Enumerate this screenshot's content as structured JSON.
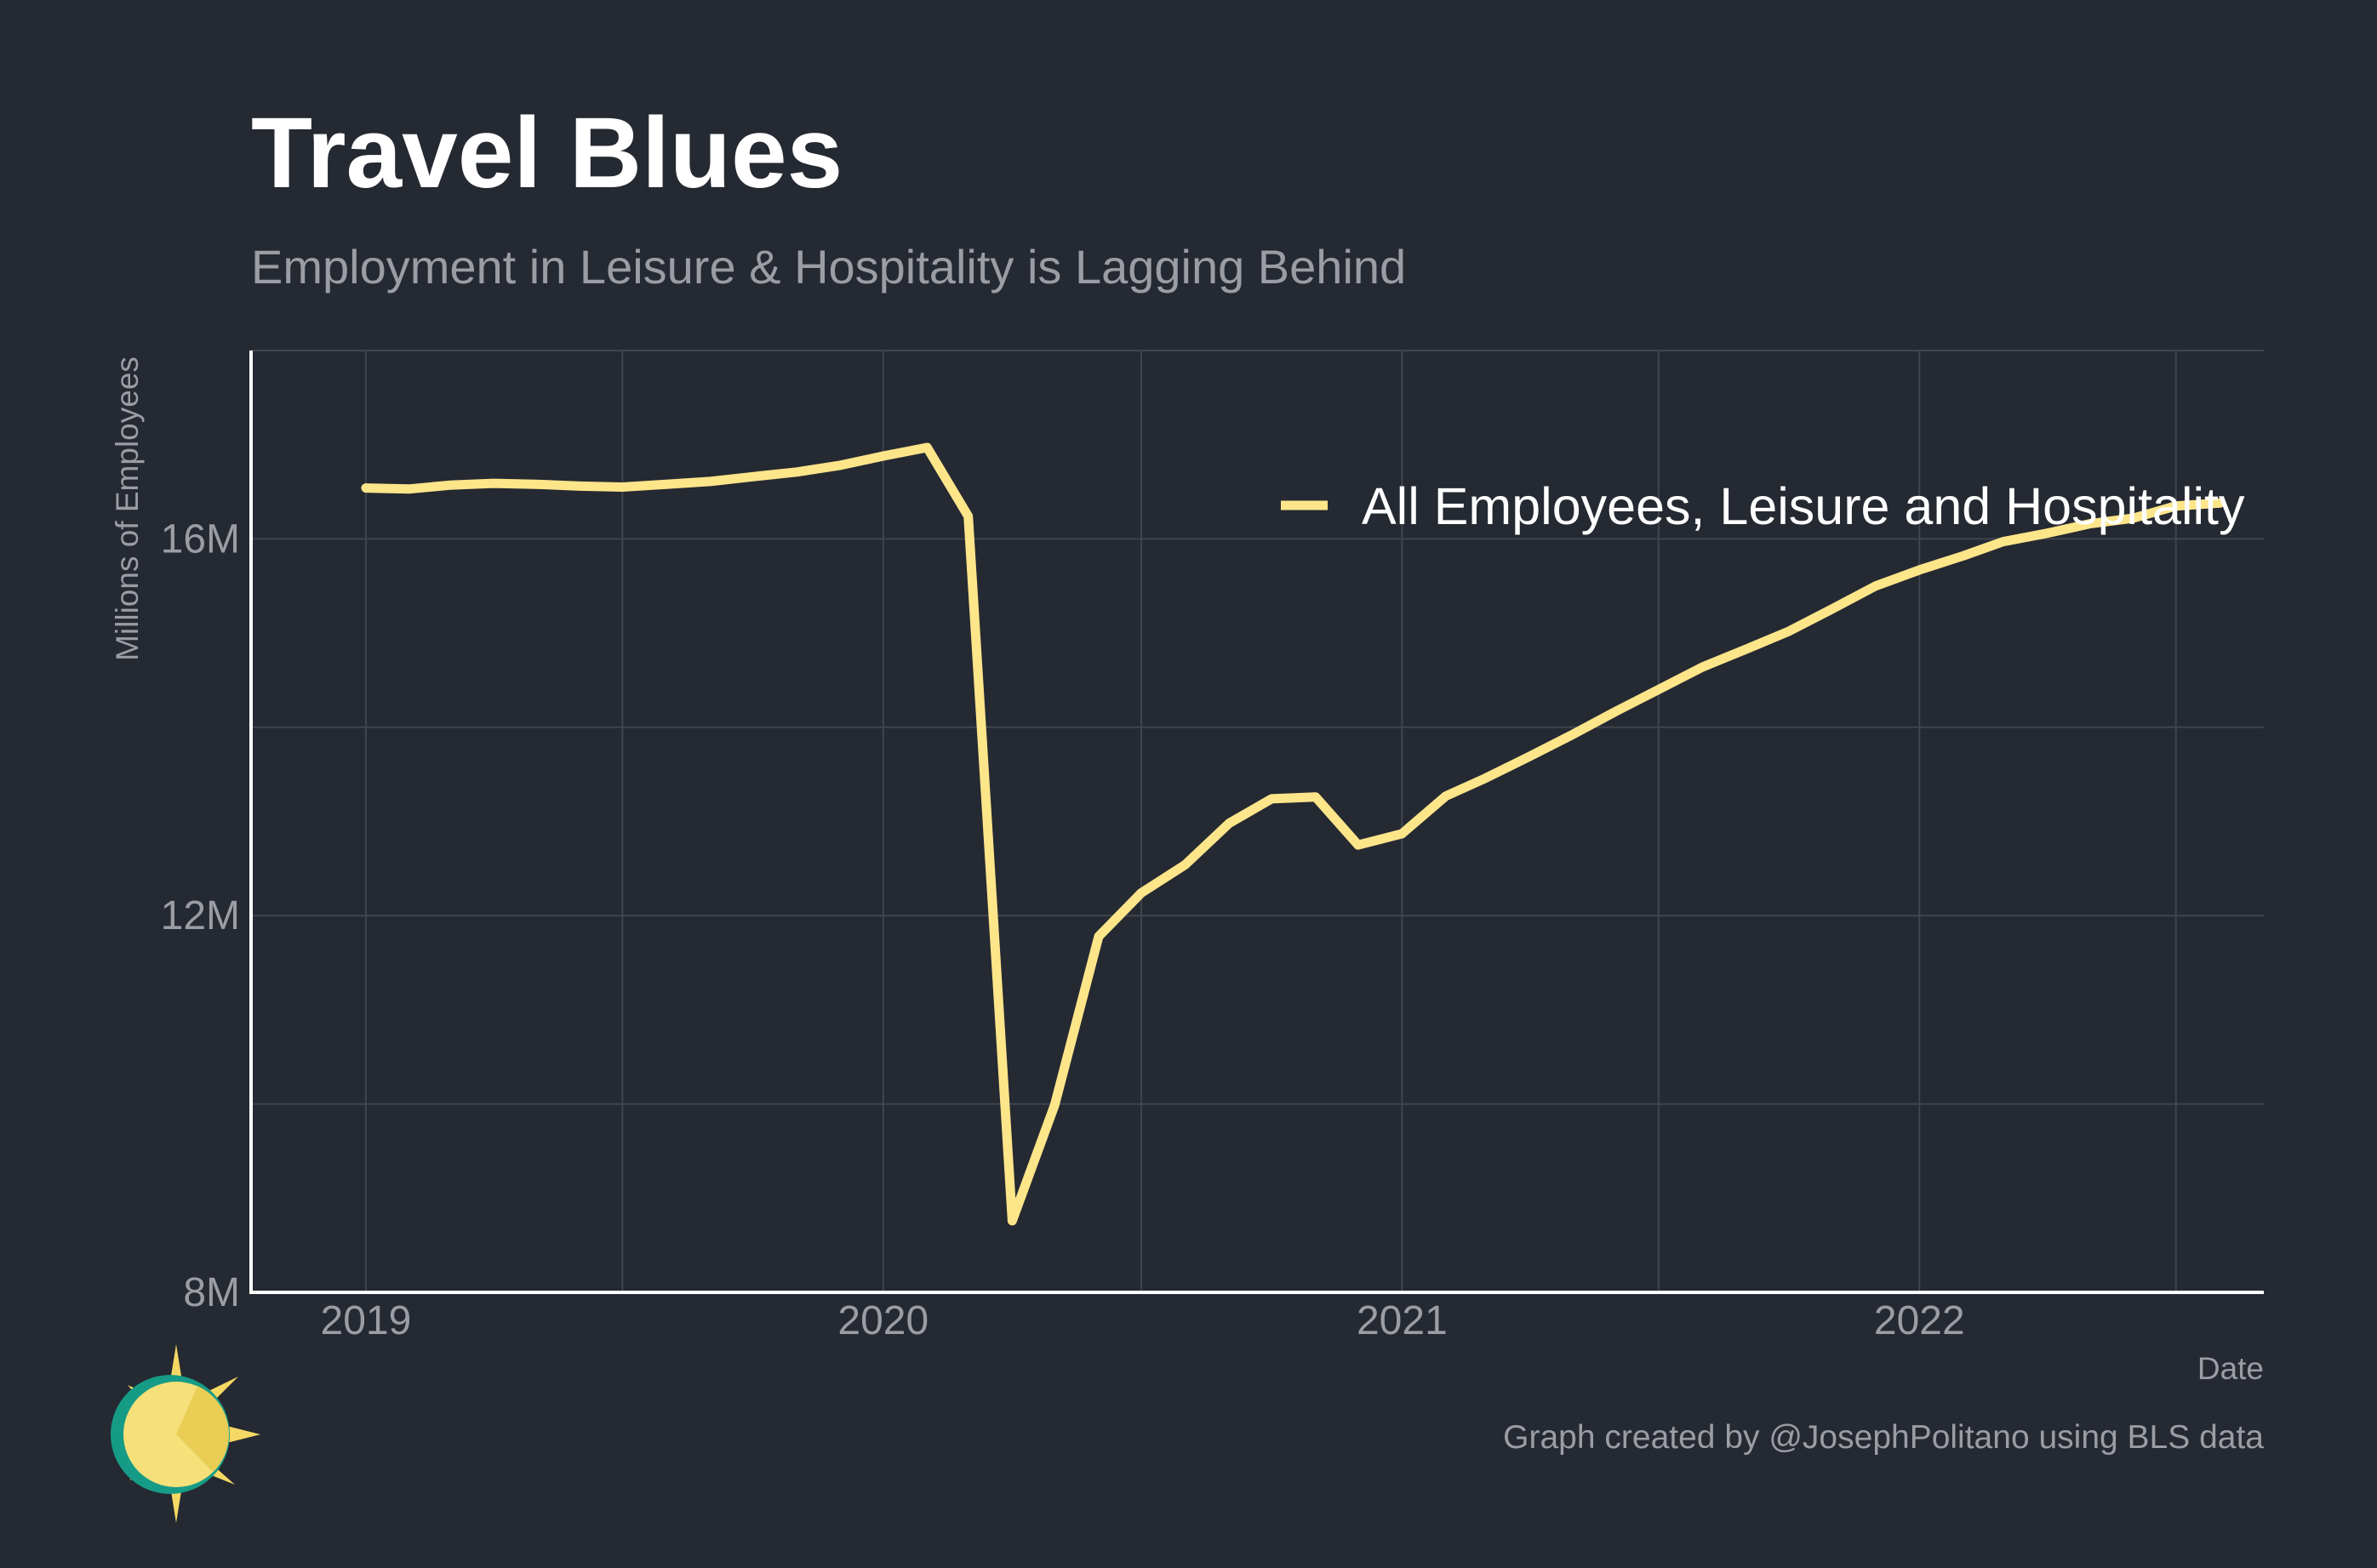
{
  "title": "Travel Blues",
  "subtitle": "Employment in Leisure & Hospitality is Lagging Behind",
  "caption": "Graph created by @JosephPolitano using BLS data",
  "colors": {
    "background": "#252932",
    "line": "#fde58a",
    "grid": "#40444d",
    "text_muted": "#9a9da3"
  },
  "logo": {
    "icon": "sun-logo-icon"
  },
  "chart_data": {
    "type": "line",
    "title": "Travel Blues",
    "subtitle": "Employment in Leisure & Hospitality is Lagging Behind",
    "xlabel": "Date",
    "ylabel": "Millions of Employees",
    "xlim": [
      "2018-10-12",
      "2022-09-01"
    ],
    "ylim": [
      8,
      18
    ],
    "x_ticks": [
      "2019-01-01",
      "2020-01-01",
      "2021-01-01",
      "2022-01-01"
    ],
    "x_tick_labels": [
      "2019",
      "2020",
      "2021",
      "2022"
    ],
    "y_ticks": [
      8,
      12,
      16
    ],
    "y_tick_labels": [
      "8M",
      "12M",
      "16M"
    ],
    "grid": true,
    "legend_position": "top-right",
    "series": [
      {
        "name": "All Employees, Leisure and Hospitality",
        "x": [
          "2019-01-01",
          "2019-02-01",
          "2019-03-01",
          "2019-04-01",
          "2019-05-01",
          "2019-06-01",
          "2019-07-01",
          "2019-08-01",
          "2019-09-01",
          "2019-10-01",
          "2019-11-01",
          "2019-12-01",
          "2020-01-01",
          "2020-02-01",
          "2020-03-01",
          "2020-04-01",
          "2020-05-01",
          "2020-06-01",
          "2020-07-01",
          "2020-08-01",
          "2020-09-01",
          "2020-10-01",
          "2020-11-01",
          "2020-12-01",
          "2021-01-01",
          "2021-02-01",
          "2021-03-01",
          "2021-04-01",
          "2021-05-01",
          "2021-06-01",
          "2021-07-01",
          "2021-08-01",
          "2021-09-01",
          "2021-10-01",
          "2021-11-01",
          "2021-12-01",
          "2022-01-01",
          "2022-02-01",
          "2022-03-01",
          "2022-04-01",
          "2022-05-01",
          "2022-06-01",
          "2022-07-01",
          "2022-08-01"
        ],
        "values": [
          16.54,
          16.53,
          16.57,
          16.59,
          16.58,
          16.56,
          16.55,
          16.58,
          16.61,
          16.66,
          16.71,
          16.78,
          16.88,
          16.97,
          16.24,
          8.76,
          9.99,
          11.78,
          12.24,
          12.54,
          12.98,
          13.24,
          13.26,
          12.75,
          12.87,
          13.27,
          13.46,
          13.69,
          13.92,
          14.17,
          14.4,
          14.64,
          14.83,
          15.02,
          15.26,
          15.5,
          15.67,
          15.82,
          15.97,
          16.06,
          16.16,
          16.22,
          16.35,
          16.38
        ]
      }
    ]
  }
}
